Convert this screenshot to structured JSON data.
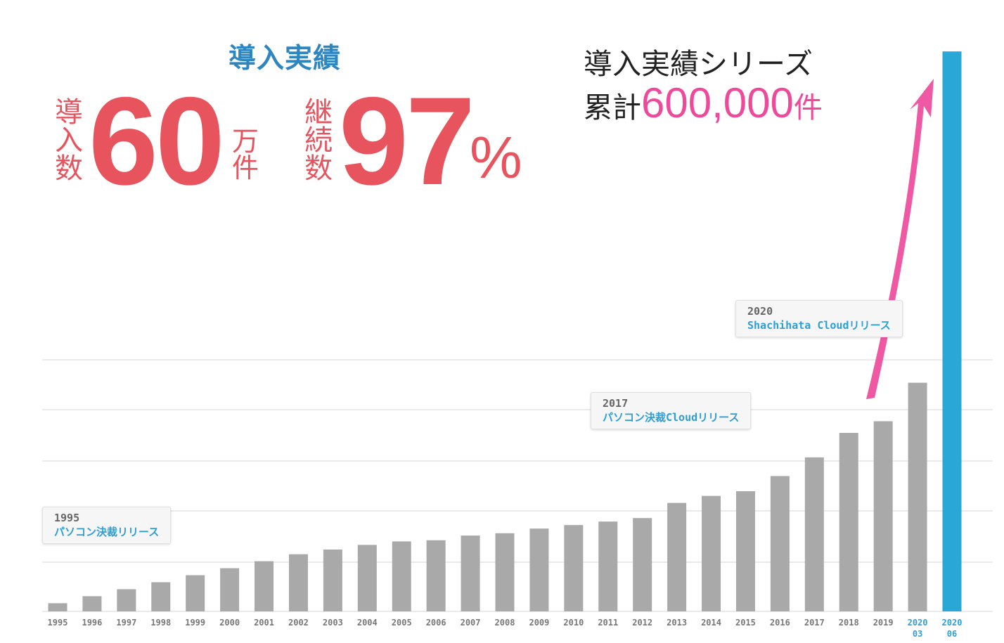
{
  "header": {
    "title": "導入実績",
    "count_label": [
      "導",
      "入",
      "数"
    ],
    "count_value": "60",
    "count_unit": [
      "万",
      "件"
    ],
    "retention_label": [
      "継",
      "続",
      "数"
    ],
    "retention_value": "97",
    "retention_unit": "%"
  },
  "series_summary": {
    "title": "導入実績シリーズ",
    "total_prefix": "累計",
    "total_value": "600,000",
    "total_unit": "件"
  },
  "callouts": [
    {
      "year": "1995",
      "text": "パソコン決裁リリース"
    },
    {
      "year": "2017",
      "text": "パソコン決裁Cloudリリース"
    },
    {
      "year": "2020",
      "text": "Shachihata Cloudリリース"
    }
  ],
  "colors": {
    "bar": "#a9a9a9",
    "highlight_bar": "#29a7d6",
    "accent_red": "#e8545e",
    "accent_pink": "#ee4a9b",
    "accent_blue": "#2e86c1",
    "gridline": "#e3e3e3"
  },
  "chart_data": {
    "type": "bar",
    "categories": [
      "1995",
      "1996",
      "1997",
      "1998",
      "1999",
      "2000",
      "2001",
      "2002",
      "2003",
      "2004",
      "2005",
      "2006",
      "2007",
      "2008",
      "2009",
      "2010",
      "2011",
      "2012",
      "2013",
      "2014",
      "2015",
      "2016",
      "2017",
      "2018",
      "2019",
      "2020\n03",
      "2020\n06"
    ],
    "values": [
      3.5,
      6.5,
      9.5,
      12.5,
      15.5,
      18.5,
      21.5,
      24.5,
      26.5,
      28.5,
      30.0,
      30.5,
      32.5,
      33.5,
      35.5,
      37.0,
      38.5,
      40.0,
      46.5,
      49.5,
      51.5,
      58.0,
      66.0,
      76.5,
      81.5,
      98.0,
      240.0
    ],
    "highlight_index": 26,
    "ylim": [
      0,
      250
    ],
    "grid": true,
    "xlabel": "",
    "ylabel": ""
  }
}
